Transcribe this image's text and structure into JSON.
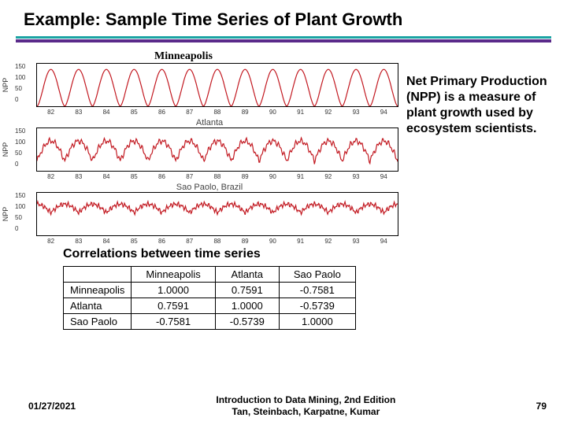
{
  "title": "Example: Sample Time Series of Plant Growth",
  "charts": {
    "ylabel": "NPP",
    "yticks": [
      "150",
      "100",
      "50",
      "0"
    ],
    "xticks": [
      "82",
      "83",
      "84",
      "85",
      "86",
      "87",
      "88",
      "89",
      "90",
      "91",
      "92",
      "93",
      "94"
    ],
    "line_color": "#c21820",
    "axis_color": "#000000",
    "series": [
      {
        "label": "Minneapolis",
        "label_style": "serif"
      },
      {
        "label": "Atlanta",
        "label_style": "sans"
      },
      {
        "label": "Sao Paolo, Brazil",
        "label_style": "sans"
      }
    ]
  },
  "side_text": "Net Primary Production (NPP) is a measure of plant growth used by ecosystem scientists.",
  "corr": {
    "heading": "Correlations between time series",
    "cols": [
      "",
      "Minneapolis",
      "Atlanta",
      "Sao Paolo"
    ],
    "rows": [
      [
        "Minneapolis",
        "1.0000",
        "0.7591",
        "-0.7581"
      ],
      [
        "Atlanta",
        "0.7591",
        "1.0000",
        "-0.5739"
      ],
      [
        "Sao Paolo",
        "-0.7581",
        "-0.5739",
        "1.0000"
      ]
    ]
  },
  "footer": {
    "date": "01/27/2021",
    "center1": "Introduction to Data Mining, 2nd Edition",
    "center2": "Tan, Steinbach, Karpatne, Kumar",
    "page": "79"
  }
}
